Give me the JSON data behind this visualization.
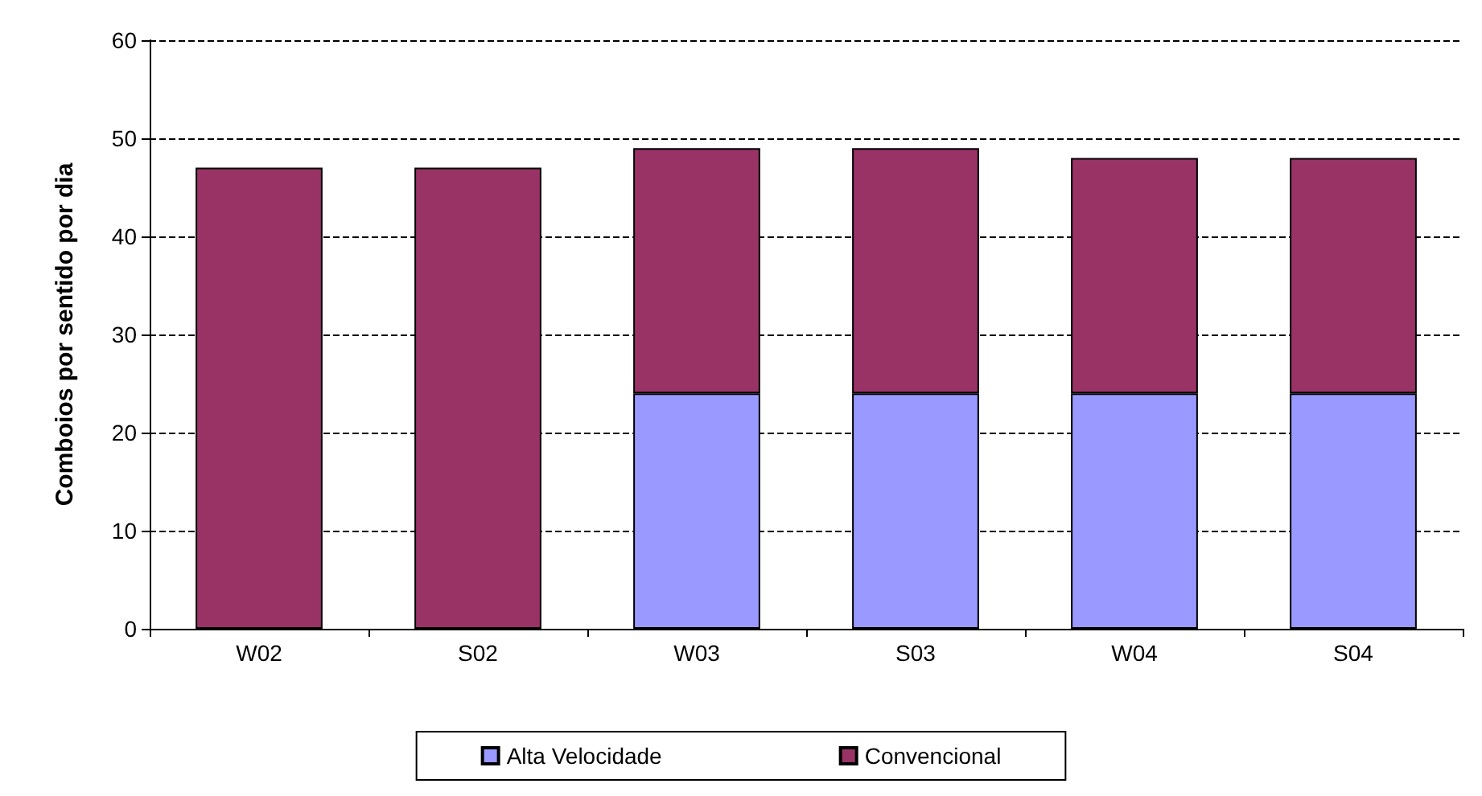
{
  "chart_data": {
    "type": "bar",
    "stacked": true,
    "ylabel": "Comboios por sentido por dia",
    "categories": [
      "W02",
      "S02",
      "W03",
      "S03",
      "W04",
      "S04"
    ],
    "series": [
      {
        "name": "Alta Velocidade",
        "color": "#9999ff",
        "values": [
          null,
          null,
          24,
          24,
          24,
          24
        ]
      },
      {
        "name": "Convencional",
        "color": "#993366",
        "values": [
          47,
          47,
          25,
          25,
          24,
          24
        ]
      }
    ],
    "ylim": [
      0,
      60
    ],
    "yticks": [
      0,
      10,
      20,
      30,
      40,
      50,
      60
    ],
    "grid": "y",
    "legend": "bottom"
  }
}
